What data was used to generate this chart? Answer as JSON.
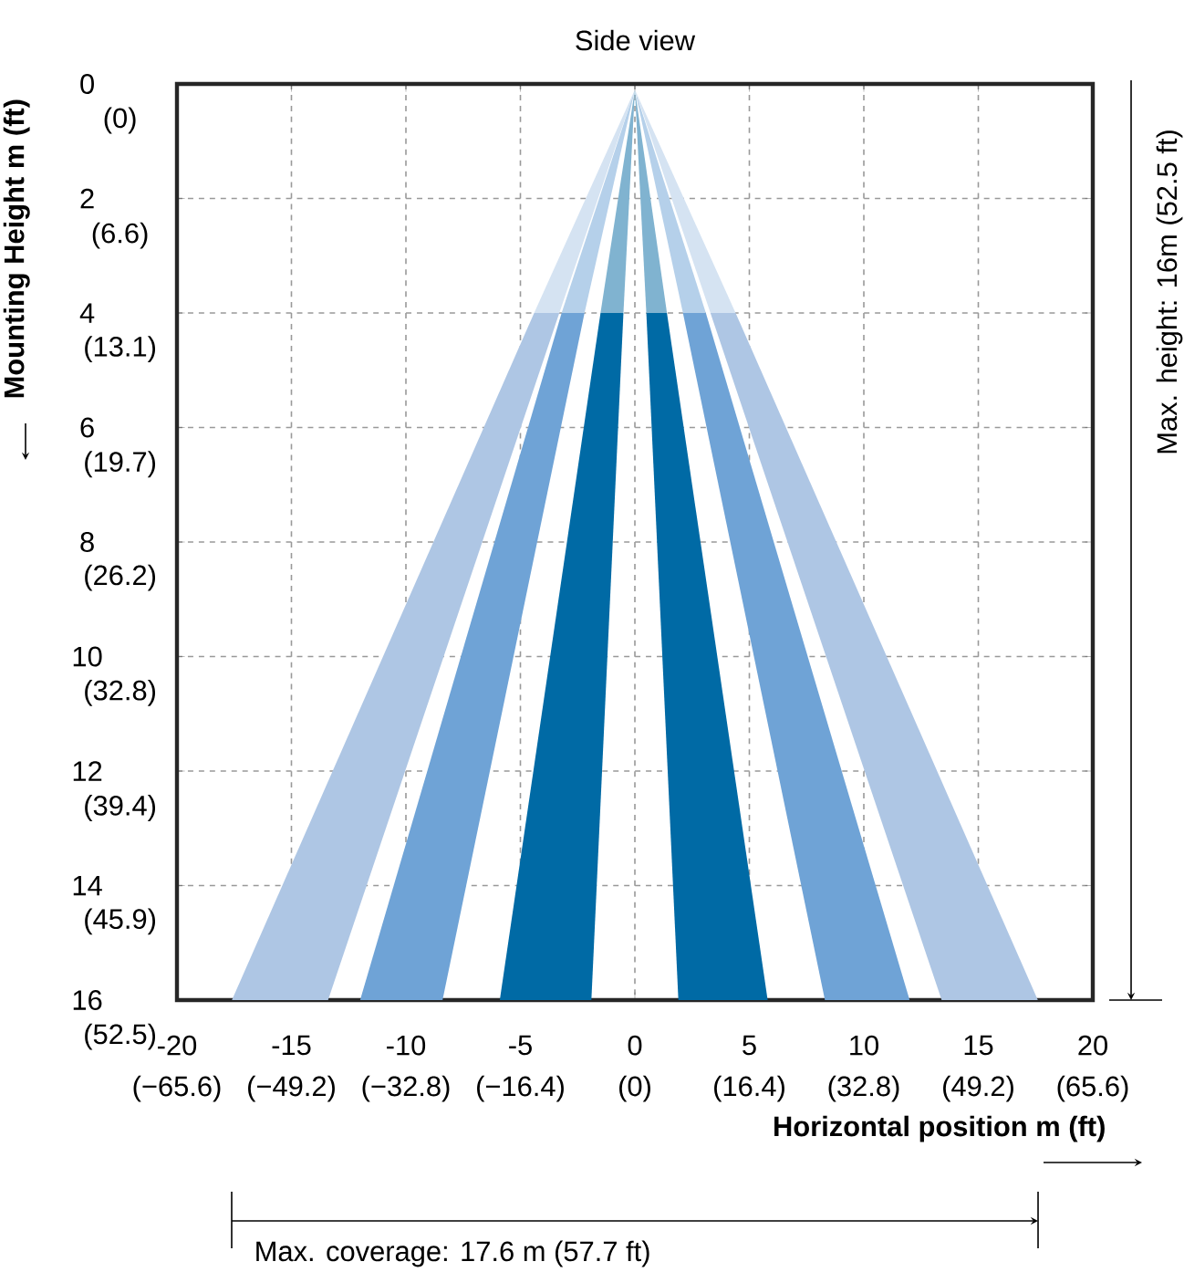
{
  "chart_data": {
    "type": "area",
    "title": "Side view",
    "xlabel": "Horizontal position m (ft)",
    "ylabel": "Mounting Height m (ft)",
    "xlim": [
      -20,
      20
    ],
    "ylim": [
      16,
      0
    ],
    "grid": true,
    "xticks": [
      -20,
      -15,
      -10,
      -5,
      0,
      5,
      10,
      15,
      20
    ],
    "yticks": [
      0,
      2,
      4,
      6,
      8,
      10,
      12,
      14,
      16
    ],
    "x2lim": [
      -65.6,
      65.6
    ],
    "x2ticks": [
      {
        "value": -65.6,
        "label": "(−65.6)"
      },
      {
        "value": -49.2,
        "label": "(−49.2)"
      },
      {
        "value": -32.8,
        "label": "(−32.8)"
      },
      {
        "value": -16.4,
        "label": "(−16.4)"
      },
      {
        "value": 0,
        "label": "(0)"
      },
      {
        "value": 16.4,
        "label": "(16.4)"
      },
      {
        "value": 32.8,
        "label": "(32.8)"
      },
      {
        "value": 49.2,
        "label": "(49.2)"
      },
      {
        "value": 65.6,
        "label": "(65.6)"
      }
    ],
    "y2lim": [
      52.5,
      0
    ],
    "y2ticks": [
      {
        "value": 0,
        "label": "(0)"
      },
      {
        "value": 6.6,
        "label": "(6.6)"
      },
      {
        "value": 13.1,
        "label": "(13.1)"
      },
      {
        "value": 19.7,
        "label": "(19.7)"
      },
      {
        "value": 26.2,
        "label": "(26.2)"
      },
      {
        "value": 32.8,
        "label": "(32.8)"
      },
      {
        "value": 39.4,
        "label": "(39.4)"
      },
      {
        "value": 45.9,
        "label": "(45.9)"
      },
      {
        "value": 52.5,
        "label": "(52.5)"
      }
    ],
    "annotations": [
      "Max. height: 16m (52.5 ft)",
      "Max. coverage: 17.6 m (57.7 ft)"
    ],
    "series": [
      {
        "color": "#d5e3f2",
        "x": [
          0,
          -4.4,
          -3.3
        ],
        "values": [
          0.1,
          4,
          4
        ]
      },
      {
        "color": "#b5d0ea",
        "x": [
          0,
          -3.2,
          -2.2
        ],
        "values": [
          0.1,
          4,
          4
        ]
      },
      {
        "color": "#80b3d0",
        "x": [
          0,
          -1.5,
          -0.5
        ],
        "values": [
          0.1,
          4,
          4
        ]
      },
      {
        "color": "#80b3d0",
        "x": [
          0,
          0.5,
          1.4
        ],
        "values": [
          0.1,
          4,
          4
        ]
      },
      {
        "color": "#b5d0ea",
        "x": [
          0,
          2.1,
          3.1
        ],
        "values": [
          0.1,
          4,
          4
        ]
      },
      {
        "color": "#d5e3f2",
        "x": [
          0,
          3.3,
          4.4
        ],
        "values": [
          0.1,
          4,
          4
        ]
      },
      {
        "color": "#aec6e4",
        "x": [
          -4.4,
          -3.3,
          -13.4,
          -17.6
        ],
        "values": [
          4,
          4,
          16,
          16
        ]
      },
      {
        "color": "#6fa3d6",
        "x": [
          -3.2,
          -2.2,
          -8.4,
          -12.0
        ],
        "values": [
          4,
          4,
          16,
          16
        ]
      },
      {
        "color": "#006aa5",
        "x": [
          -1.5,
          -0.5,
          -1.9,
          -5.9
        ],
        "values": [
          4,
          4,
          16,
          16
        ]
      },
      {
        "color": "#006aa5",
        "x": [
          0.5,
          1.4,
          5.8,
          1.9
        ],
        "values": [
          4,
          4,
          16,
          16
        ]
      },
      {
        "color": "#6fa3d6",
        "x": [
          2.1,
          3.1,
          12.0,
          8.3
        ],
        "values": [
          4,
          4,
          16,
          16
        ]
      },
      {
        "color": "#aec6e4",
        "x": [
          3.3,
          4.4,
          17.6,
          13.4
        ],
        "values": [
          4,
          4,
          16,
          16
        ]
      }
    ]
  }
}
